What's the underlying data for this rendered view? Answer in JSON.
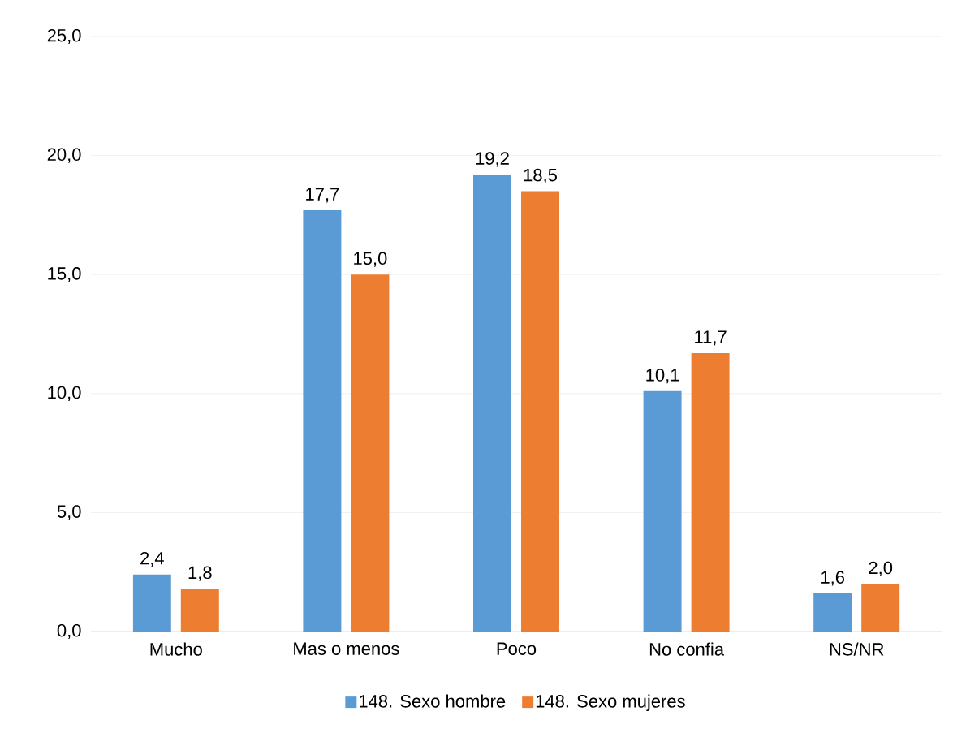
{
  "chart_data": {
    "type": "bar",
    "categories": [
      "Mucho",
      "Mas o menos",
      "Poco",
      "No confia",
      "NS/NR"
    ],
    "series": [
      {
        "name": "148. Sexo hombre",
        "color": "#5b9bd5",
        "values": [
          2.4,
          17.7,
          19.2,
          10.1,
          1.6
        ],
        "value_labels": [
          "2,4",
          "17,7",
          "19,2",
          "10,1",
          "1,6"
        ]
      },
      {
        "name": "148. Sexo mujeres",
        "color": "#ed7d31",
        "values": [
          1.8,
          15.0,
          18.5,
          11.7,
          2.0
        ],
        "value_labels": [
          "1,8",
          "15,0",
          "18,5",
          "11,7",
          "2,0"
        ]
      }
    ],
    "ylim": [
      0,
      25
    ],
    "yticks": [
      {
        "value": 0,
        "label": "0,0"
      },
      {
        "value": 5,
        "label": "5,0"
      },
      {
        "value": 10,
        "label": "10,0"
      },
      {
        "value": 15,
        "label": "15,0"
      },
      {
        "value": 20,
        "label": "20,0"
      },
      {
        "value": 25,
        "label": "25,0"
      }
    ],
    "grid": "y",
    "legend": "bottom"
  }
}
